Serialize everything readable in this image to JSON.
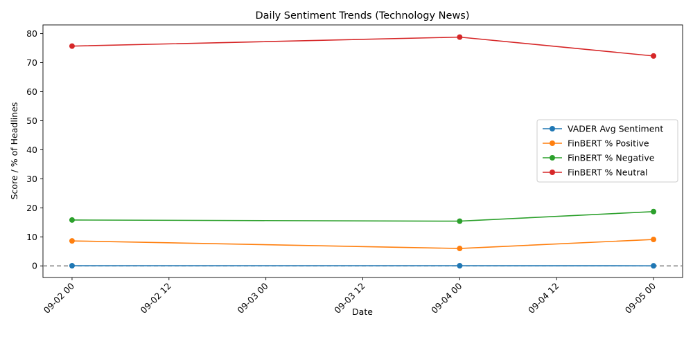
{
  "chart_data": {
    "type": "line",
    "title": "Daily Sentiment Trends (Technology News)",
    "xlabel": "Date",
    "ylabel": "Score / % of Headlines",
    "x": [
      "2024-09-02",
      "2024-09-04",
      "2024-09-05"
    ],
    "x_tick_labels": [
      "09-02 00",
      "09-02 12",
      "09-03 00",
      "09-03 12",
      "09-04 00",
      "09-04 12",
      "09-05 00"
    ],
    "ylim": [
      -4,
      83
    ],
    "y_ticks": [
      0,
      10,
      20,
      30,
      40,
      50,
      60,
      70,
      80
    ],
    "grid": false,
    "legend_position": "center-right",
    "reference_line": {
      "y": 0,
      "style": "dashed",
      "color": "#808080"
    },
    "series": [
      {
        "name": "VADER Avg Sentiment",
        "color": "#1f77b4",
        "values": [
          0.05,
          0.05,
          0.02
        ]
      },
      {
        "name": "FinBERT % Positive",
        "color": "#ff7f0e",
        "values": [
          8.6,
          6.0,
          9.1
        ]
      },
      {
        "name": "FinBERT % Negative",
        "color": "#2ca02c",
        "values": [
          15.8,
          15.4,
          18.7
        ]
      },
      {
        "name": "FinBERT % Neutral",
        "color": "#d62728",
        "values": [
          75.7,
          78.8,
          72.3
        ]
      }
    ]
  }
}
